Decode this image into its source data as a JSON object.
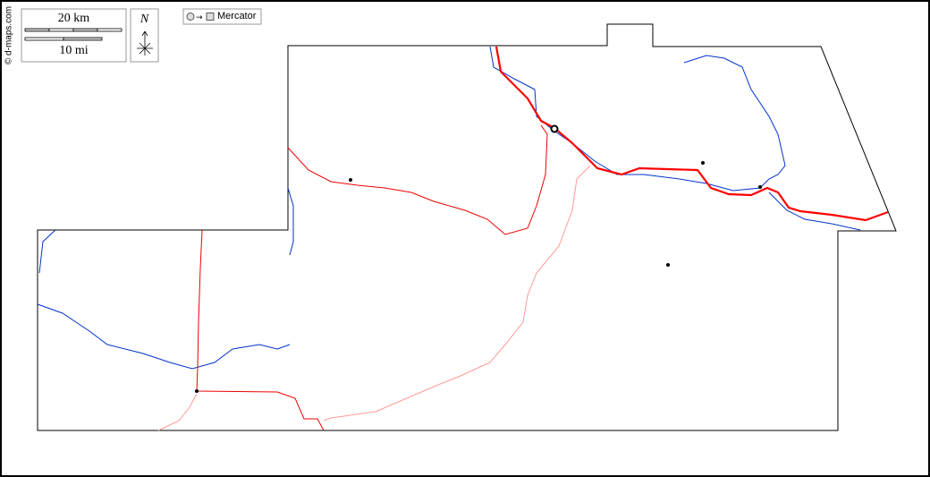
{
  "credit": "© d-maps.com",
  "scale": {
    "km_label": "20 km",
    "mi_label": "10 mi"
  },
  "north": {
    "label": "N"
  },
  "projection": {
    "label": "Mercator"
  },
  "colors": {
    "river": "#0033cc",
    "road_major": "#ff0000",
    "road_minor": "#ff9999",
    "border": "#000000"
  }
}
